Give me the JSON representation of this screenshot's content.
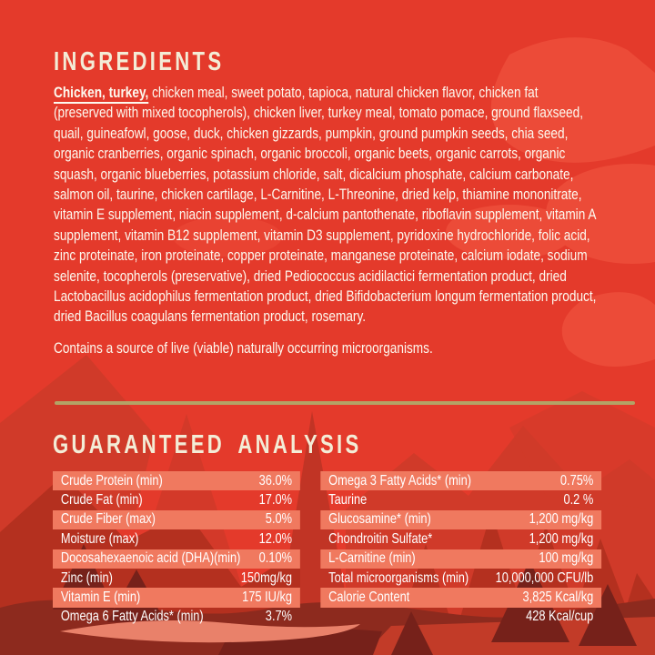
{
  "label": {
    "colors": {
      "background_red": "#e43a2b",
      "mountain_red": "#d03a29",
      "bottom_maroon": "#8d2a1e",
      "highlight_salmon": "#f0795f",
      "heading_cream": "#f3ecd6",
      "divider_gold": "#b3a366",
      "body_text_white": "#fdf9ef"
    }
  },
  "ingredients": {
    "title": "INGREDIENTS",
    "lead": "Chicken, turkey,",
    "body": " chicken meal, sweet potato, tapioca, natural chicken flavor, chicken fat (preserved with mixed tocopherols), chicken liver, turkey meal, tomato pomace, ground flaxseed, quail, guineafowl, goose, duck, chicken gizzards, pumpkin, ground pumpkin seeds, chia seed, organic cranberries, organic spinach, organic broccoli, organic beets, organic carrots, organic squash, organic blueberries, potassium chloride, salt, dicalcium phosphate, calcium carbonate, salmon oil, taurine, chicken cartilage, L-Carnitine, L-Threonine, dried kelp, thiamine mononitrate, vitamin E supplement, niacin supplement, d-calcium pantothenate, riboflavin supplement, vitamin A supplement, vitamin B12 supplement, vitamin D3 supplement, pyridoxine hydrochloride, folic acid, zinc proteinate, iron proteinate, copper proteinate, manganese proteinate, calcium iodate, sodium selenite, tocopherols (preservative), dried Pediococcus acidilactici fermentation product, dried Lactobacillus acidophilus fermentation product, dried Bifidobacterium longum fermentation product, dried Bacillus coagulans fermentation product, rosemary.",
    "note": "Contains a source of live (viable) naturally occurring microorganisms."
  },
  "analysis": {
    "title": "GUARANTEED ANALYSIS",
    "left_rows": [
      {
        "label": "Crude Protein (min)",
        "value": "36.0%"
      },
      {
        "label": "Crude Fat (min)",
        "value": "17.0%"
      },
      {
        "label": "Crude Fiber (max)",
        "value": "5.0%"
      },
      {
        "label": "Moisture (max)",
        "value": "12.0%"
      },
      {
        "label": "Docosahexaenoic acid (DHA)(min)",
        "value": "0.10%"
      },
      {
        "label": "Zinc (min)",
        "value": "150mg/kg"
      },
      {
        "label": "Vitamin E (min)",
        "value": "175 IU/kg"
      },
      {
        "label": "Omega 6 Fatty Acids* (min)",
        "value": "3.7%"
      }
    ],
    "right_rows": [
      {
        "label": "Omega 3 Fatty Acids* (min)",
        "value": "0.75%"
      },
      {
        "label": "Taurine",
        "value": "0.2 %"
      },
      {
        "label": "Glucosamine* (min)",
        "value": "1,200 mg/kg"
      },
      {
        "label": "Chondroitin Sulfate*",
        "value": "1,200 mg/kg"
      },
      {
        "label": "L-Carnitine (min)",
        "value": "100 mg/kg"
      },
      {
        "label": "Total microorganisms (min)",
        "value": "10,000,000 CFU/lb"
      },
      {
        "label": "Calorie Content",
        "value": "3,825 Kcal/kg"
      },
      {
        "label": "",
        "value": "428 Kcal/cup"
      }
    ]
  }
}
